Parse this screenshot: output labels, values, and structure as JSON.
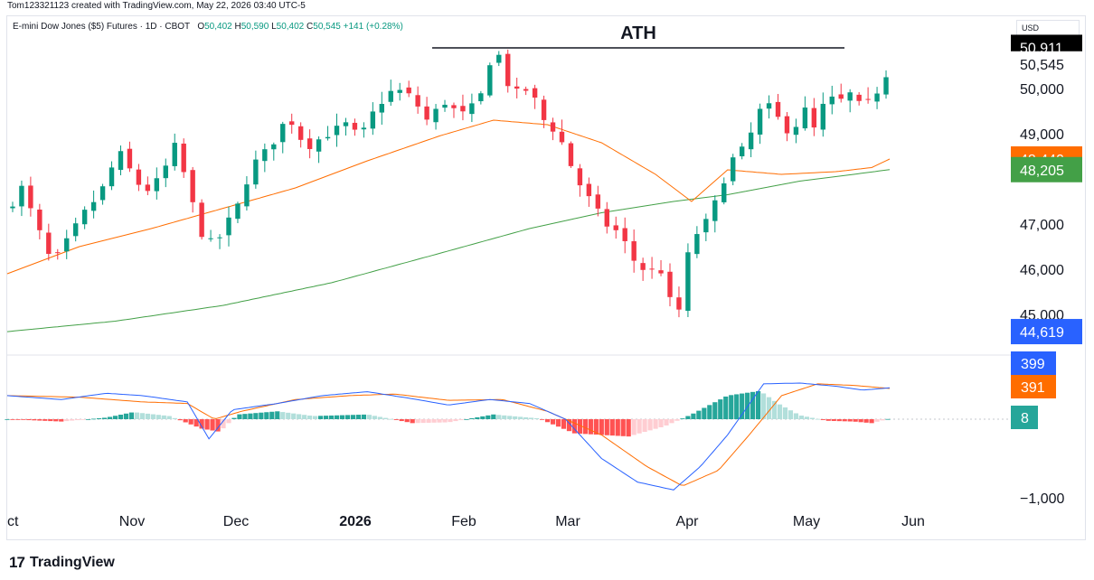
{
  "header": {
    "caption": "Tom123321123 created with TradingView.com, May 22, 2026 03:40 UTC-5"
  },
  "legend": {
    "symbol": "E-mini Dow Jones ($5) Futures · 1D · CBOT",
    "open_label": "O",
    "open": "50,402",
    "high_label": "H",
    "high": "50,590",
    "low_label": "L",
    "low": "50,402",
    "close_label": "C",
    "close": "50,545",
    "change": "+141 (+0.28%)"
  },
  "currency": "USD",
  "annotation": {
    "text": "ATH"
  },
  "price_scale": {
    "ticks": [
      "50,000",
      "49,000",
      "47,000",
      "46,000",
      "45,000"
    ],
    "badges": [
      {
        "text": "50,911",
        "value": 50911,
        "color": "#000000"
      },
      {
        "text": "50,545",
        "value": 50545,
        "color": "#ffffff"
      },
      {
        "text": "48,440",
        "value": 48440,
        "color": "#ff6d00"
      },
      {
        "text": "48,205",
        "value": 48205,
        "color": "#43a047"
      },
      {
        "text": "44,619",
        "value": 44619,
        "color": "#2962ff"
      }
    ]
  },
  "macd_scale": {
    "ticks": [
      "−1,000"
    ],
    "badges": [
      {
        "text": "399",
        "color": "#2962ff"
      },
      {
        "text": "391",
        "color": "#ff6d00"
      },
      {
        "text": "8",
        "color": "#26a69a"
      }
    ]
  },
  "time_axis": [
    "ct",
    "Nov",
    "Dec",
    "2026",
    "Feb",
    "Mar",
    "Apr",
    "May",
    "Jun"
  ],
  "brand": {
    "name": "TradingView"
  },
  "colors": {
    "up": "#089981",
    "down": "#f23645",
    "ema_fast": "#ff6d00",
    "ma_slow": "#43a047",
    "macd": "#2962ff",
    "signal": "#ff6d00",
    "hist_up_strong": "#26a69a",
    "hist_up_weak": "#b2dfdb",
    "hist_down_strong": "#ff5252",
    "hist_down_weak": "#ffcdd2"
  },
  "chart_data": {
    "type": "candlestick",
    "interval": "1D",
    "price_range": [
      44619,
      50911
    ],
    "last": {
      "open": 50402,
      "high": 50590,
      "low": 50402,
      "close": 50545,
      "change": 141,
      "change_pct": 0.28
    },
    "close_path": [
      [
        0,
        47300
      ],
      [
        8,
        47800
      ],
      [
        18,
        46800
      ],
      [
        25,
        46100
      ],
      [
        33,
        46600
      ],
      [
        42,
        47200
      ],
      [
        52,
        47700
      ],
      [
        62,
        48600
      ],
      [
        68,
        48200
      ],
      [
        76,
        47700
      ],
      [
        85,
        48000
      ],
      [
        94,
        48800
      ],
      [
        100,
        47800
      ],
      [
        108,
        46800
      ],
      [
        115,
        46500
      ],
      [
        122,
        47000
      ],
      [
        128,
        47400
      ],
      [
        136,
        48300
      ],
      [
        146,
        48700
      ],
      [
        156,
        49400
      ],
      [
        166,
        48700
      ],
      [
        178,
        49000
      ],
      [
        188,
        49200
      ],
      [
        196,
        48900
      ],
      [
        205,
        49600
      ],
      [
        215,
        50000
      ],
      [
        225,
        49800
      ],
      [
        233,
        49300
      ],
      [
        243,
        49700
      ],
      [
        252,
        49400
      ],
      [
        262,
        49700
      ],
      [
        268,
        50600
      ],
      [
        272,
        50900
      ],
      [
        276,
        50200
      ],
      [
        283,
        49900
      ],
      [
        290,
        50000
      ],
      [
        298,
        49300
      ],
      [
        306,
        49000
      ],
      [
        316,
        48000
      ],
      [
        324,
        47500
      ],
      [
        332,
        47000
      ],
      [
        340,
        46800
      ],
      [
        348,
        46200
      ],
      [
        356,
        45900
      ],
      [
        362,
        46100
      ],
      [
        368,
        45300
      ],
      [
        373,
        45100
      ],
      [
        378,
        46300
      ],
      [
        384,
        46900
      ],
      [
        390,
        47100
      ],
      [
        396,
        47800
      ],
      [
        402,
        48400
      ],
      [
        410,
        48700
      ],
      [
        418,
        49500
      ],
      [
        424,
        49600
      ],
      [
        430,
        49200
      ],
      [
        436,
        49000
      ],
      [
        442,
        49600
      ],
      [
        448,
        49100
      ],
      [
        455,
        49800
      ],
      [
        462,
        49700
      ],
      [
        469,
        49900
      ],
      [
        475,
        49500
      ],
      [
        480,
        49800
      ],
      [
        486,
        50100
      ],
      [
        490,
        50545
      ]
    ],
    "ema_fast_path": [
      [
        0,
        45900
      ],
      [
        40,
        46500
      ],
      [
        80,
        46900
      ],
      [
        120,
        47350
      ],
      [
        160,
        47800
      ],
      [
        200,
        48400
      ],
      [
        240,
        48950
      ],
      [
        270,
        49300
      ],
      [
        300,
        49200
      ],
      [
        330,
        48800
      ],
      [
        360,
        48100
      ],
      [
        380,
        47500
      ],
      [
        400,
        48200
      ],
      [
        430,
        48100
      ],
      [
        460,
        48160
      ],
      [
        480,
        48250
      ],
      [
        490,
        48440
      ]
    ],
    "ma_slow_path": [
      [
        0,
        44619
      ],
      [
        60,
        44850
      ],
      [
        120,
        45200
      ],
      [
        180,
        45700
      ],
      [
        240,
        46350
      ],
      [
        290,
        46900
      ],
      [
        330,
        47250
      ],
      [
        370,
        47500
      ],
      [
        400,
        47650
      ],
      [
        440,
        47950
      ],
      [
        470,
        48100
      ],
      [
        490,
        48205
      ]
    ],
    "macd": {
      "last": {
        "macd": 399,
        "signal": 391,
        "histogram": 8
      },
      "range": [
        -1000,
        600
      ],
      "macd_path": [
        [
          0,
          300
        ],
        [
          30,
          250
        ],
        [
          55,
          330
        ],
        [
          75,
          300
        ],
        [
          100,
          220
        ],
        [
          112,
          -250
        ],
        [
          125,
          120
        ],
        [
          150,
          200
        ],
        [
          175,
          300
        ],
        [
          200,
          350
        ],
        [
          225,
          260
        ],
        [
          245,
          180
        ],
        [
          268,
          250
        ],
        [
          290,
          200
        ],
        [
          310,
          0
        ],
        [
          330,
          -500
        ],
        [
          350,
          -800
        ],
        [
          370,
          -900
        ],
        [
          385,
          -600
        ],
        [
          400,
          -200
        ],
        [
          420,
          450
        ],
        [
          440,
          460
        ],
        [
          460,
          420
        ],
        [
          475,
          370
        ],
        [
          490,
          399
        ]
      ],
      "signal_path": [
        [
          0,
          300
        ],
        [
          40,
          280
        ],
        [
          75,
          220
        ],
        [
          100,
          200
        ],
        [
          115,
          0
        ],
        [
          130,
          100
        ],
        [
          160,
          250
        ],
        [
          190,
          300
        ],
        [
          215,
          320
        ],
        [
          245,
          240
        ],
        [
          275,
          250
        ],
        [
          300,
          100
        ],
        [
          330,
          -200
        ],
        [
          355,
          -600
        ],
        [
          375,
          -850
        ],
        [
          395,
          -650
        ],
        [
          412,
          -200
        ],
        [
          430,
          300
        ],
        [
          450,
          450
        ],
        [
          470,
          430
        ],
        [
          490,
          391
        ]
      ],
      "hist_path": [
        [
          0,
          0
        ],
        [
          30,
          -30
        ],
        [
          55,
          20
        ],
        [
          70,
          90
        ],
        [
          90,
          40
        ],
        [
          108,
          -120
        ],
        [
          118,
          -160
        ],
        [
          128,
          60
        ],
        [
          150,
          100
        ],
        [
          170,
          40
        ],
        [
          200,
          60
        ],
        [
          225,
          -50
        ],
        [
          245,
          -40
        ],
        [
          270,
          60
        ],
        [
          295,
          10
        ],
        [
          315,
          -180
        ],
        [
          345,
          -220
        ],
        [
          365,
          -90
        ],
        [
          380,
          60
        ],
        [
          400,
          300
        ],
        [
          418,
          360
        ],
        [
          428,
          200
        ],
        [
          440,
          50
        ],
        [
          455,
          -20
        ],
        [
          470,
          -30
        ],
        [
          480,
          -50
        ],
        [
          490,
          8
        ]
      ]
    }
  }
}
